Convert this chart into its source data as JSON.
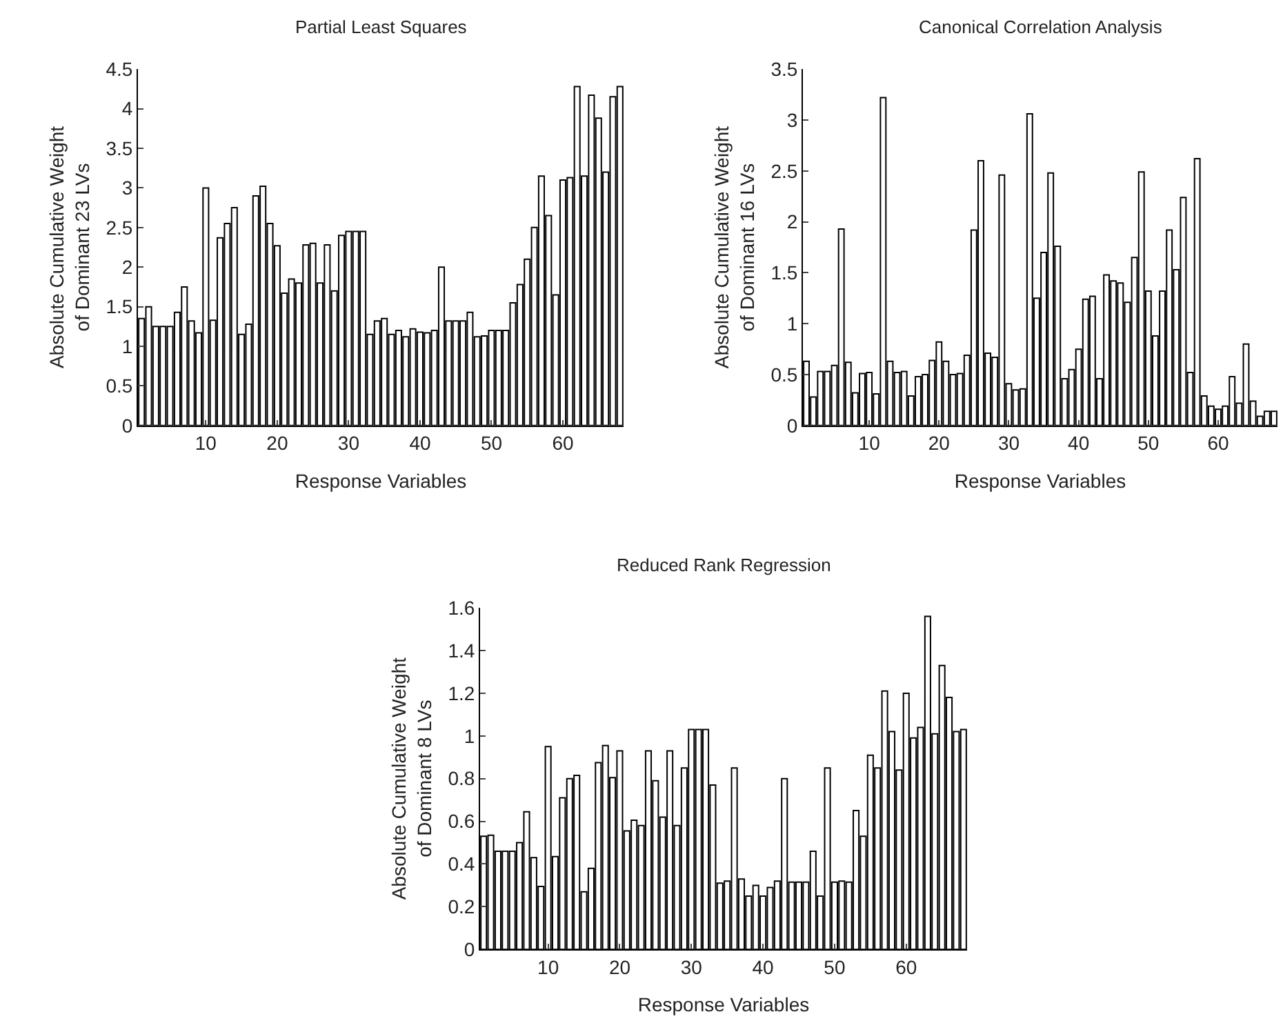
{
  "chart_data": [
    {
      "type": "bar",
      "title": "Partial Least Squares",
      "xlabel": "Response Variables",
      "ylabel": "Absolute Cumulative Weight\nof Dominant 23 LVs",
      "color": "#ffffff",
      "x": [
        1,
        2,
        3,
        4,
        5,
        6,
        7,
        8,
        9,
        10,
        11,
        12,
        13,
        14,
        15,
        16,
        17,
        18,
        19,
        20,
        21,
        22,
        23,
        24,
        25,
        26,
        27,
        28,
        29,
        30,
        31,
        32,
        33,
        34,
        35,
        36,
        37,
        38,
        39,
        40,
        41,
        42,
        43,
        44,
        45,
        46,
        47,
        48,
        49,
        50,
        51,
        52,
        53,
        54,
        55,
        56,
        57,
        58,
        59,
        60,
        61,
        62,
        63,
        64,
        65,
        66,
        67,
        68
      ],
      "values": [
        1.35,
        1.5,
        1.25,
        1.25,
        1.25,
        1.43,
        1.75,
        1.32,
        1.17,
        3.0,
        1.33,
        2.37,
        2.55,
        2.75,
        1.15,
        1.28,
        2.9,
        3.02,
        2.55,
        2.27,
        1.67,
        1.85,
        1.8,
        2.28,
        2.3,
        1.8,
        2.28,
        1.7,
        2.4,
        2.45,
        2.45,
        2.45,
        1.15,
        1.32,
        1.35,
        1.15,
        1.2,
        1.12,
        1.22,
        1.18,
        1.17,
        1.2,
        2.0,
        1.32,
        1.32,
        1.32,
        1.43,
        1.12,
        1.13,
        1.2,
        1.2,
        1.2,
        1.55,
        1.78,
        2.1,
        2.5,
        3.15,
        2.65,
        1.65,
        3.1,
        3.13,
        4.28,
        3.15,
        4.17,
        3.88,
        3.2,
        4.15,
        4.28
      ],
      "xlim": [
        0.5,
        68.5
      ],
      "xticks": [
        10,
        20,
        30,
        40,
        50,
        60
      ],
      "ylim": [
        0,
        4.5
      ],
      "yticks": [
        0,
        0.5,
        1,
        1.5,
        2,
        2.5,
        3,
        3.5,
        4,
        4.5
      ]
    },
    {
      "type": "bar",
      "title": "Canonical Correlation Analysis",
      "xlabel": "Response Variables",
      "ylabel": "Absolute Cumulative Weight\nof Dominant 16 LVs",
      "color": "#ffffff",
      "x": [
        1,
        2,
        3,
        4,
        5,
        6,
        7,
        8,
        9,
        10,
        11,
        12,
        13,
        14,
        15,
        16,
        17,
        18,
        19,
        20,
        21,
        22,
        23,
        24,
        25,
        26,
        27,
        28,
        29,
        30,
        31,
        32,
        33,
        34,
        35,
        36,
        37,
        38,
        39,
        40,
        41,
        42,
        43,
        44,
        45,
        46,
        47,
        48,
        49,
        50,
        51,
        52,
        53,
        54,
        55,
        56,
        57,
        58,
        59,
        60,
        61,
        62,
        63,
        64,
        65,
        66,
        67,
        68
      ],
      "values": [
        0.63,
        0.28,
        0.53,
        0.53,
        0.59,
        1.93,
        0.62,
        0.32,
        0.51,
        0.52,
        0.31,
        3.22,
        0.63,
        0.52,
        0.53,
        0.29,
        0.48,
        0.5,
        0.64,
        0.82,
        0.63,
        0.5,
        0.51,
        0.69,
        1.92,
        2.6,
        0.71,
        0.67,
        2.46,
        0.41,
        0.35,
        0.36,
        3.06,
        1.25,
        1.7,
        2.48,
        1.76,
        0.46,
        0.55,
        0.75,
        1.24,
        1.27,
        0.46,
        1.48,
        1.42,
        1.4,
        1.21,
        1.65,
        2.49,
        1.32,
        0.88,
        1.32,
        1.92,
        1.53,
        2.24,
        0.52,
        2.62,
        0.29,
        0.19,
        0.16,
        0.19,
        0.48,
        0.22,
        0.8,
        0.24,
        0.09,
        0.14,
        0.14
      ],
      "xlim": [
        0.5,
        68.5
      ],
      "xticks": [
        10,
        20,
        30,
        40,
        50,
        60
      ],
      "ylim": [
        0,
        3.5
      ],
      "yticks": [
        0,
        0.5,
        1,
        1.5,
        2,
        2.5,
        3,
        3.5
      ]
    },
    {
      "type": "bar",
      "title": "Reduced Rank Regression",
      "xlabel": "Response Variables",
      "ylabel": "Absolute Cumulative Weight\nof Dominant 8 LVs",
      "color": "#ffffff",
      "x": [
        1,
        2,
        3,
        4,
        5,
        6,
        7,
        8,
        9,
        10,
        11,
        12,
        13,
        14,
        15,
        16,
        17,
        18,
        19,
        20,
        21,
        22,
        23,
        24,
        25,
        26,
        27,
        28,
        29,
        30,
        31,
        32,
        33,
        34,
        35,
        36,
        37,
        38,
        39,
        40,
        41,
        42,
        43,
        44,
        45,
        46,
        47,
        48,
        49,
        50,
        51,
        52,
        53,
        54,
        55,
        56,
        57,
        58,
        59,
        60,
        61,
        62,
        63,
        64,
        65,
        66,
        67,
        68
      ],
      "values": [
        0.53,
        0.535,
        0.46,
        0.46,
        0.46,
        0.5,
        0.645,
        0.43,
        0.295,
        0.95,
        0.435,
        0.71,
        0.8,
        0.815,
        0.27,
        0.38,
        0.875,
        0.955,
        0.805,
        0.93,
        0.555,
        0.605,
        0.58,
        0.93,
        0.79,
        0.62,
        0.93,
        0.58,
        0.85,
        1.03,
        1.03,
        1.03,
        0.77,
        0.31,
        0.32,
        0.85,
        0.33,
        0.25,
        0.3,
        0.25,
        0.29,
        0.32,
        0.8,
        0.315,
        0.315,
        0.315,
        0.46,
        0.25,
        0.85,
        0.315,
        0.32,
        0.315,
        0.65,
        0.53,
        0.91,
        0.85,
        1.21,
        1.02,
        0.84,
        1.2,
        0.99,
        1.04,
        1.56,
        1.01,
        1.33,
        1.18,
        1.02,
        1.03
      ],
      "xlim": [
        0.5,
        68.5
      ],
      "xticks": [
        10,
        20,
        30,
        40,
        50,
        60
      ],
      "ylim": [
        0,
        1.6
      ],
      "yticks": [
        0,
        0.2,
        0.4,
        0.6,
        0.8,
        1,
        1.2,
        1.4,
        1.6
      ]
    }
  ]
}
